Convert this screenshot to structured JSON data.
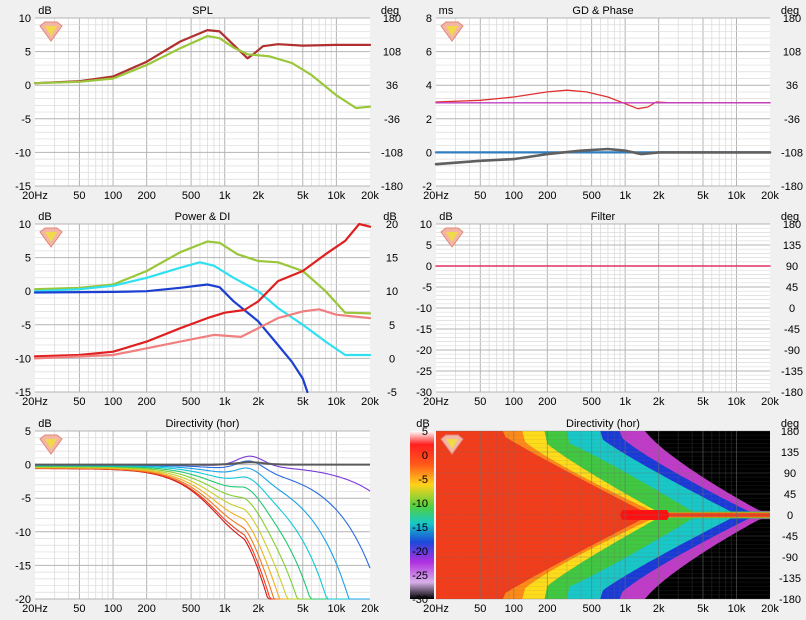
{
  "colors": {
    "background": "#f0f0f0",
    "plot_bg": "#ffffff",
    "grid_major": "#b4b4b4",
    "grid_minor": "#dcdcdc",
    "text": "#000000"
  },
  "chart_data": [
    {
      "id": "spl",
      "type": "line",
      "title": "SPL",
      "left_unit": "dB",
      "right_unit": "deg",
      "x_scale": "log",
      "xlim": [
        20,
        20000
      ],
      "x_ticks": [
        "20Hz",
        "50",
        "100",
        "200",
        "500",
        "1k",
        "2k",
        "5k",
        "10k",
        "20k"
      ],
      "ylim": [
        -15,
        10
      ],
      "y_ticks": [
        "10",
        "5",
        "0",
        "-5",
        "-10",
        "-15"
      ],
      "y2lim": [
        -180,
        180
      ],
      "y2_ticks": [
        "180",
        "108",
        "36",
        "-36",
        "-108",
        "-180"
      ],
      "grid": true,
      "series": [
        {
          "color": "#b03030",
          "width": 2.2,
          "points": [
            [
              20,
              0.3
            ],
            [
              50,
              0.6
            ],
            [
              100,
              1.3
            ],
            [
              200,
              3.5
            ],
            [
              400,
              6.5
            ],
            [
              700,
              8.2
            ],
            [
              900,
              8.0
            ],
            [
              1200,
              6.0
            ],
            [
              1600,
              4.0
            ],
            [
              1800,
              4.6
            ],
            [
              2200,
              5.8
            ],
            [
              3000,
              6.1
            ],
            [
              5000,
              5.9
            ],
            [
              10000,
              6.0
            ],
            [
              20000,
              6.0
            ]
          ]
        },
        {
          "color": "#9ac63a",
          "width": 2.2,
          "points": [
            [
              20,
              0.3
            ],
            [
              50,
              0.5
            ],
            [
              100,
              1.0
            ],
            [
              200,
              3.0
            ],
            [
              400,
              5.5
            ],
            [
              700,
              7.3
            ],
            [
              900,
              7.0
            ],
            [
              1200,
              5.6
            ],
            [
              1600,
              4.6
            ],
            [
              2500,
              4.3
            ],
            [
              4000,
              3.3
            ],
            [
              6000,
              1.5
            ],
            [
              10000,
              -1.5
            ],
            [
              15000,
              -3.4
            ],
            [
              20000,
              -3.2
            ]
          ]
        }
      ]
    },
    {
      "id": "gd",
      "type": "line",
      "title": "GD & Phase",
      "left_unit": "ms",
      "right_unit": "deg",
      "x_scale": "log",
      "xlim": [
        20,
        20000
      ],
      "x_ticks": [
        "20Hz",
        "50",
        "100",
        "200",
        "500",
        "1k",
        "2k",
        "5k",
        "10k",
        "20k"
      ],
      "ylim": [
        -2,
        8
      ],
      "y_ticks": [
        "8",
        "6",
        "4",
        "2",
        "0",
        "-2"
      ],
      "y2lim": [
        -180,
        180
      ],
      "y2_ticks": [
        "180",
        "108",
        "36",
        "-36",
        "-108",
        "-180"
      ],
      "grid": true,
      "series": [
        {
          "color": "#e03030",
          "width": 1.3,
          "points": [
            [
              20,
              3.0
            ],
            [
              50,
              3.1
            ],
            [
              100,
              3.3
            ],
            [
              200,
              3.6
            ],
            [
              300,
              3.7
            ],
            [
              450,
              3.6
            ],
            [
              700,
              3.3
            ],
            [
              1000,
              2.9
            ],
            [
              1300,
              2.6
            ],
            [
              1600,
              2.7
            ],
            [
              1900,
              3.0
            ],
            [
              2500,
              2.95
            ],
            [
              5000,
              2.95
            ],
            [
              20000,
              2.95
            ]
          ]
        },
        {
          "color": "#c040c0",
          "width": 1.3,
          "points": [
            [
              20,
              2.95
            ],
            [
              20000,
              2.95
            ]
          ]
        },
        {
          "color": "#2f7fc0",
          "width": 2.2,
          "points": [
            [
              20,
              0
            ],
            [
              20000,
              0
            ]
          ]
        },
        {
          "color": "#606060",
          "width": 2.6,
          "points": [
            [
              20,
              -0.7
            ],
            [
              50,
              -0.5
            ],
            [
              100,
              -0.4
            ],
            [
              200,
              -0.1
            ],
            [
              400,
              0.1
            ],
            [
              700,
              0.2
            ],
            [
              1000,
              0.1
            ],
            [
              1400,
              -0.1
            ],
            [
              2000,
              0.0
            ],
            [
              20000,
              0.0
            ]
          ]
        }
      ]
    },
    {
      "id": "power",
      "type": "line",
      "title": "Power & DI",
      "left_unit": "dB",
      "right_unit": "dB",
      "x_scale": "log",
      "xlim": [
        20,
        20000
      ],
      "x_ticks": [
        "20Hz",
        "50",
        "100",
        "200",
        "500",
        "1k",
        "2k",
        "5k",
        "10k",
        "20k"
      ],
      "ylim": [
        -15,
        10
      ],
      "y_ticks": [
        "10",
        "5",
        "0",
        "-5",
        "-10",
        "-15"
      ],
      "y2lim": [
        -5,
        20
      ],
      "y2_ticks": [
        "20",
        "15",
        "10",
        "5",
        "0",
        "-5"
      ],
      "grid": true,
      "series": [
        {
          "color": "#9ac63a",
          "width": 2.2,
          "points": [
            [
              20,
              0.3
            ],
            [
              50,
              0.5
            ],
            [
              100,
              1.0
            ],
            [
              200,
              3.0
            ],
            [
              400,
              5.8
            ],
            [
              700,
              7.4
            ],
            [
              900,
              7.2
            ],
            [
              1300,
              5.5
            ],
            [
              2000,
              4.5
            ],
            [
              3000,
              4.3
            ],
            [
              5000,
              3.0
            ],
            [
              8000,
              0
            ],
            [
              12000,
              -3.2
            ],
            [
              20000,
              -3.3
            ]
          ]
        },
        {
          "color": "#30e0f0",
          "width": 2.2,
          "points": [
            [
              20,
              0.0
            ],
            [
              50,
              0.3
            ],
            [
              100,
              0.8
            ],
            [
              200,
              2.0
            ],
            [
              400,
              3.5
            ],
            [
              600,
              4.3
            ],
            [
              800,
              3.8
            ],
            [
              1200,
              2.0
            ],
            [
              2000,
              0
            ],
            [
              3000,
              -2.5
            ],
            [
              5000,
              -5
            ],
            [
              8000,
              -7.5
            ],
            [
              12000,
              -9.5
            ],
            [
              20000,
              -9.5
            ]
          ]
        },
        {
          "color": "#1b3fd0",
          "width": 2.2,
          "points": [
            [
              20,
              -0.2
            ],
            [
              100,
              -0.1
            ],
            [
              200,
              0.0
            ],
            [
              400,
              0.5
            ],
            [
              700,
              1.0
            ],
            [
              900,
              0.6
            ],
            [
              1200,
              -1.5
            ],
            [
              2000,
              -4.5
            ],
            [
              3000,
              -8.0
            ],
            [
              4000,
              -10.5
            ],
            [
              5000,
              -13
            ],
            [
              5500,
              -15
            ]
          ]
        },
        {
          "color": "#e02020",
          "width": 2.2,
          "points": [
            [
              20,
              -9.7
            ],
            [
              50,
              -9.5
            ],
            [
              100,
              -9.0
            ],
            [
              200,
              -7.5
            ],
            [
              400,
              -5.5
            ],
            [
              700,
              -4.0
            ],
            [
              1000,
              -3.2
            ],
            [
              1500,
              -2.8
            ],
            [
              2000,
              -1.5
            ],
            [
              3000,
              1.5
            ],
            [
              5000,
              3.0
            ],
            [
              8000,
              5.5
            ],
            [
              12000,
              7.5
            ],
            [
              16000,
              10
            ],
            [
              20000,
              9.6
            ]
          ]
        },
        {
          "color": "#f08080",
          "width": 2.2,
          "points": [
            [
              20,
              -10
            ],
            [
              100,
              -9.5
            ],
            [
              200,
              -8.5
            ],
            [
              400,
              -7.5
            ],
            [
              800,
              -6.5
            ],
            [
              1400,
              -6.8
            ],
            [
              2000,
              -5.5
            ],
            [
              3000,
              -4.0
            ],
            [
              5000,
              -3.0
            ],
            [
              7000,
              -2.7
            ],
            [
              10000,
              -3.5
            ],
            [
              20000,
              -4.0
            ]
          ]
        }
      ]
    },
    {
      "id": "filter",
      "type": "line",
      "title": "Filter",
      "left_unit": "dB",
      "right_unit": "deg",
      "x_scale": "log",
      "xlim": [
        20,
        20000
      ],
      "x_ticks": [
        "20Hz",
        "50",
        "100",
        "200",
        "500",
        "1k",
        "2k",
        "5k",
        "10k",
        "20k"
      ],
      "ylim": [
        -30,
        10
      ],
      "y_ticks": [
        "10",
        "5",
        "0",
        "-5",
        "-10",
        "-15",
        "-20",
        "-25",
        "-30"
      ],
      "y2lim": [
        -180,
        180
      ],
      "y2_ticks": [
        "180",
        "135",
        "90",
        "45",
        "0",
        "-45",
        "-90",
        "-135",
        "-180"
      ],
      "grid": true,
      "series": [
        {
          "color": "#e03060",
          "width": 1.5,
          "points": [
            [
              20,
              0
            ],
            [
              20000,
              0
            ]
          ]
        }
      ]
    },
    {
      "id": "dir",
      "type": "line",
      "title": "Directivity (hor)",
      "left_unit": "dB",
      "right_unit": "",
      "x_scale": "log",
      "xlim": [
        20,
        20000
      ],
      "x_ticks": [
        "20Hz",
        "50",
        "100",
        "200",
        "500",
        "1k",
        "2k",
        "5k",
        "10k",
        "20k"
      ],
      "ylim": [
        -20,
        5
      ],
      "y_ticks": [
        "5",
        "0",
        "-5",
        "-10",
        "-15",
        "-20"
      ],
      "grid": true
    },
    {
      "id": "map",
      "type": "heatmap",
      "title": "Directivity (hor)",
      "left_unit": "dB",
      "right_unit": "deg",
      "x_scale": "log",
      "xlim": [
        20,
        20000
      ],
      "x_ticks": [
        "20Hz",
        "50",
        "100",
        "200",
        "500",
        "1k",
        "2k",
        "5k",
        "10k",
        "20k"
      ],
      "ylim": [
        -180,
        180
      ],
      "y2_ticks": [
        "180",
        "135",
        "90",
        "45",
        "0",
        "-45",
        "-90",
        "-135",
        "-180"
      ],
      "colorbar_ticks": [
        "5",
        "0",
        "-5",
        "-10",
        "-15",
        "-20",
        "-25",
        "-30"
      ],
      "colorbar_range": [
        -30,
        5
      ]
    }
  ]
}
